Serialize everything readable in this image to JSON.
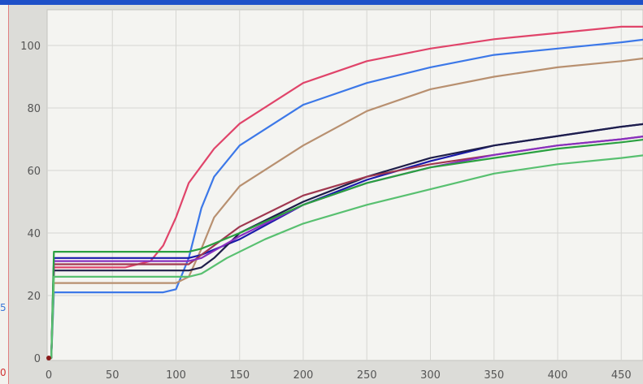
{
  "chart_data": {
    "type": "line",
    "title": "",
    "xlabel": "",
    "ylabel": "",
    "xlim": [
      0,
      470
    ],
    "ylim": [
      0,
      108
    ],
    "x_ticks": [
      "0",
      "50",
      "100",
      "150",
      "200",
      "250",
      "300",
      "350",
      "400",
      "450"
    ],
    "y_ticks": [
      "0",
      "20",
      "40",
      "60",
      "80",
      "100"
    ],
    "grid": true,
    "legend": "none",
    "side_labels": {
      "blue": "5",
      "red": "0"
    },
    "series": [
      {
        "color": "#e0446a",
        "points": [
          [
            0,
            0
          ],
          [
            2,
            0
          ],
          [
            4,
            29
          ],
          [
            60,
            29
          ],
          [
            80,
            31
          ],
          [
            90,
            36
          ],
          [
            100,
            45
          ],
          [
            110,
            56
          ],
          [
            130,
            67
          ],
          [
            150,
            75
          ],
          [
            200,
            88
          ],
          [
            250,
            95
          ],
          [
            300,
            99
          ],
          [
            350,
            102
          ],
          [
            400,
            104
          ],
          [
            450,
            106
          ],
          [
            470,
            106
          ]
        ]
      },
      {
        "color": "#3c78e8",
        "points": [
          [
            0,
            0
          ],
          [
            2,
            0
          ],
          [
            4,
            21
          ],
          [
            90,
            21
          ],
          [
            100,
            22
          ],
          [
            110,
            32
          ],
          [
            120,
            48
          ],
          [
            130,
            58
          ],
          [
            150,
            68
          ],
          [
            200,
            81
          ],
          [
            250,
            88
          ],
          [
            300,
            93
          ],
          [
            350,
            97
          ],
          [
            400,
            99
          ],
          [
            450,
            101
          ],
          [
            470,
            102
          ]
        ]
      },
      {
        "color": "#b89070",
        "points": [
          [
            0,
            0
          ],
          [
            2,
            0
          ],
          [
            4,
            24
          ],
          [
            100,
            24
          ],
          [
            110,
            26
          ],
          [
            120,
            35
          ],
          [
            130,
            45
          ],
          [
            150,
            55
          ],
          [
            200,
            68
          ],
          [
            250,
            79
          ],
          [
            300,
            86
          ],
          [
            350,
            90
          ],
          [
            400,
            93
          ],
          [
            450,
            95
          ],
          [
            470,
            96
          ]
        ]
      },
      {
        "color": "#1a1aaa",
        "points": [
          [
            0,
            0
          ],
          [
            2,
            0
          ],
          [
            4,
            32
          ],
          [
            100,
            32
          ],
          [
            110,
            32
          ],
          [
            120,
            33
          ],
          [
            150,
            38
          ],
          [
            200,
            49
          ],
          [
            250,
            57
          ],
          [
            300,
            63
          ],
          [
            350,
            68
          ],
          [
            400,
            71
          ],
          [
            450,
            74
          ],
          [
            470,
            75
          ]
        ]
      },
      {
        "color": "#1e1e4a",
        "points": [
          [
            0,
            0
          ],
          [
            2,
            0
          ],
          [
            4,
            28
          ],
          [
            110,
            28
          ],
          [
            120,
            29
          ],
          [
            130,
            32
          ],
          [
            150,
            40
          ],
          [
            200,
            50
          ],
          [
            250,
            58
          ],
          [
            300,
            64
          ],
          [
            350,
            68
          ],
          [
            400,
            71
          ],
          [
            450,
            74
          ],
          [
            470,
            75
          ]
        ]
      },
      {
        "color": "#a03850",
        "points": [
          [
            0,
            0
          ],
          [
            2,
            0
          ],
          [
            4,
            30
          ],
          [
            110,
            30
          ],
          [
            120,
            33
          ],
          [
            150,
            42
          ],
          [
            200,
            52
          ],
          [
            250,
            58
          ],
          [
            300,
            62
          ],
          [
            350,
            65
          ],
          [
            400,
            68
          ],
          [
            450,
            70
          ],
          [
            470,
            71
          ]
        ]
      },
      {
        "color": "#8830c0",
        "points": [
          [
            0,
            0
          ],
          [
            2,
            0
          ],
          [
            4,
            31
          ],
          [
            110,
            31
          ],
          [
            120,
            32
          ],
          [
            150,
            39
          ],
          [
            200,
            49
          ],
          [
            250,
            56
          ],
          [
            300,
            61
          ],
          [
            350,
            65
          ],
          [
            400,
            68
          ],
          [
            450,
            70
          ],
          [
            470,
            71
          ]
        ]
      },
      {
        "color": "#2aa040",
        "points": [
          [
            0,
            0
          ],
          [
            2,
            0
          ],
          [
            4,
            34
          ],
          [
            110,
            34
          ],
          [
            120,
            35
          ],
          [
            150,
            40
          ],
          [
            200,
            49
          ],
          [
            250,
            56
          ],
          [
            300,
            61
          ],
          [
            350,
            64
          ],
          [
            400,
            67
          ],
          [
            450,
            69
          ],
          [
            470,
            70
          ]
        ]
      },
      {
        "color": "#58c070",
        "points": [
          [
            0,
            0
          ],
          [
            2,
            0
          ],
          [
            4,
            26
          ],
          [
            110,
            26
          ],
          [
            120,
            27
          ],
          [
            140,
            32
          ],
          [
            170,
            38
          ],
          [
            200,
            43
          ],
          [
            250,
            49
          ],
          [
            300,
            54
          ],
          [
            350,
            59
          ],
          [
            400,
            62
          ],
          [
            450,
            64
          ],
          [
            470,
            65
          ]
        ]
      }
    ]
  }
}
